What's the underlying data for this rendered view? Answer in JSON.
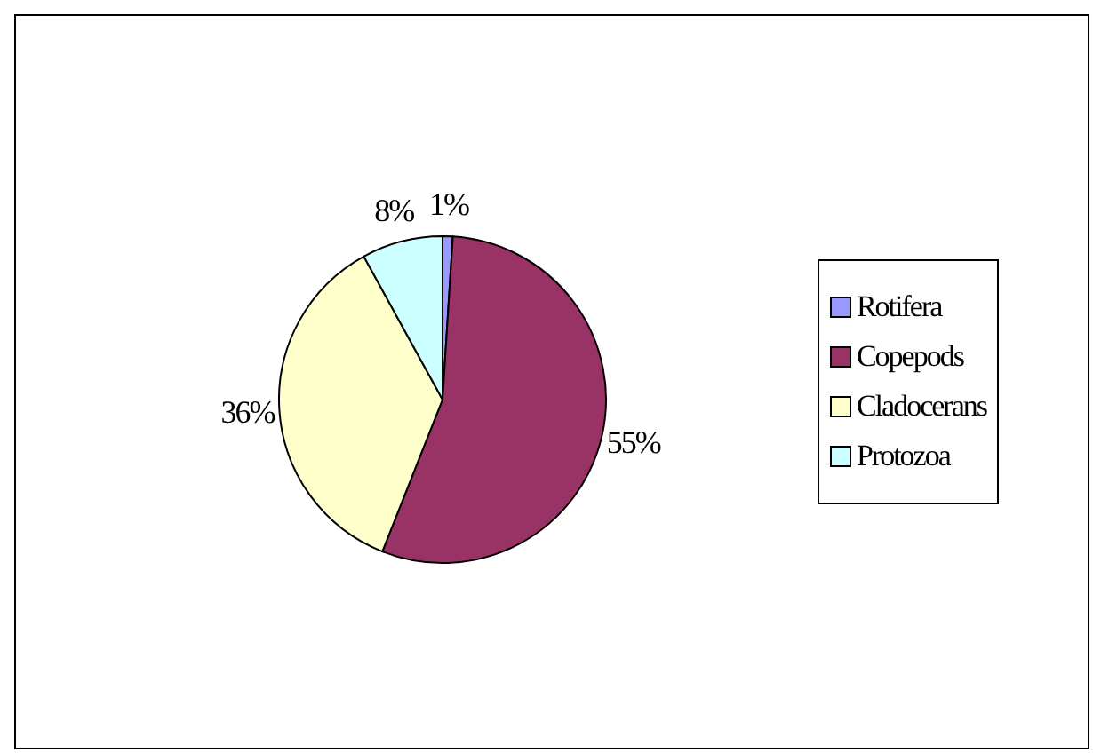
{
  "chart_data": {
    "type": "pie",
    "categories": [
      "Rotifera",
      "Copepods",
      "Cladocerans",
      "Protozoa"
    ],
    "values": [
      1,
      55,
      36,
      8
    ],
    "colors": [
      "#9999ff",
      "#993366",
      "#ffffcc",
      "#ccffff"
    ],
    "value_labels": [
      "1%",
      "55%",
      "36%",
      "8%"
    ],
    "legend": "right"
  }
}
